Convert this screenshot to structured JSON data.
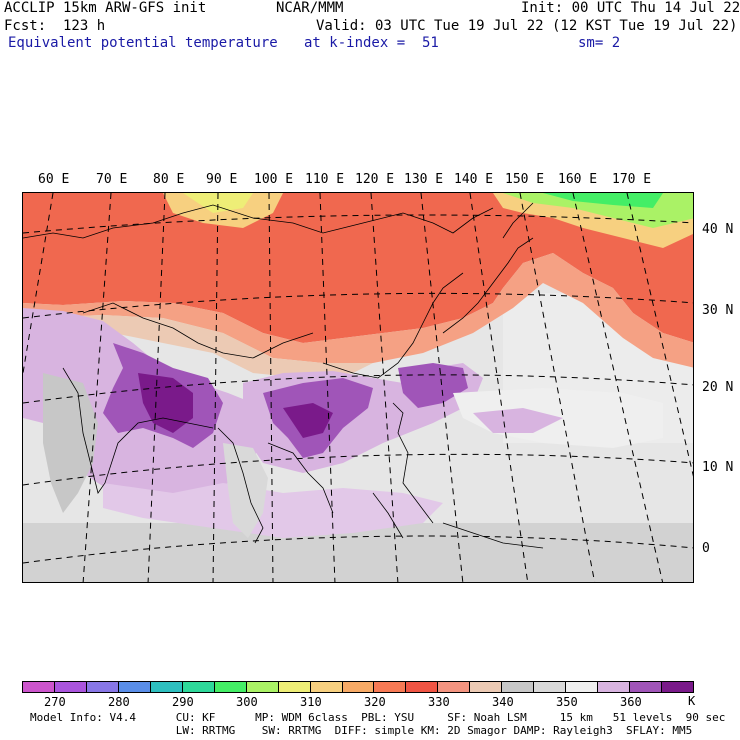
{
  "header": {
    "line1_left": "ACCLIP 15km ARW-GFS init",
    "line1_center": "NCAR/MMM",
    "line1_right": "Init: 00 UTC Thu 14 Jul 22",
    "line2_left": "Fcst:  123 h",
    "line2_right": "Valid: 03 UTC Tue 19 Jul 22 (12 KST Tue 19 Jul 22)",
    "line3_field": "Equivalent potential temperature",
    "line3_level": "at k-index =  51",
    "line3_smooth": "sm= 2"
  },
  "map": {
    "lon_labels": [
      "60 E",
      "70 E",
      "80 E",
      "90 E",
      "100 E",
      "110 E",
      "120 E",
      "130 E",
      "140 E",
      "150 E",
      "160 E",
      "170 E"
    ],
    "lat_labels": [
      "40 N",
      "30 N",
      "20 N",
      "10 N",
      "0"
    ]
  },
  "colorbar": {
    "colors": [
      "#cc55cc",
      "#aa55dd",
      "#8877e6",
      "#5a8ee8",
      "#2ebfbf",
      "#2ed89a",
      "#44ee66",
      "#aaf266",
      "#eeee77",
      "#f7d080",
      "#f7aa66",
      "#f77a55",
      "#f05544",
      "#f39480",
      "#eccab4",
      "#c7c7c7",
      "#d9d9d9",
      "#efefef",
      "#d8b4e0",
      "#a055b8",
      "#7a1a8a"
    ],
    "ticks": [
      "270",
      "280",
      "290",
      "300",
      "310",
      "320",
      "330",
      "340",
      "350",
      "360"
    ],
    "unit": "K"
  },
  "footer": {
    "line1": "Model Info: V4.4      CU: KF      MP: WDM 6class  PBL: YSU     SF: Noah LSM     15 km   51 levels  90 sec",
    "line2": "                      LW: RRTMG    SW: RRTMG  DIFF: simple KM: 2D Smagor DAMP: Rayleigh3  SFLAY: MM5"
  }
}
